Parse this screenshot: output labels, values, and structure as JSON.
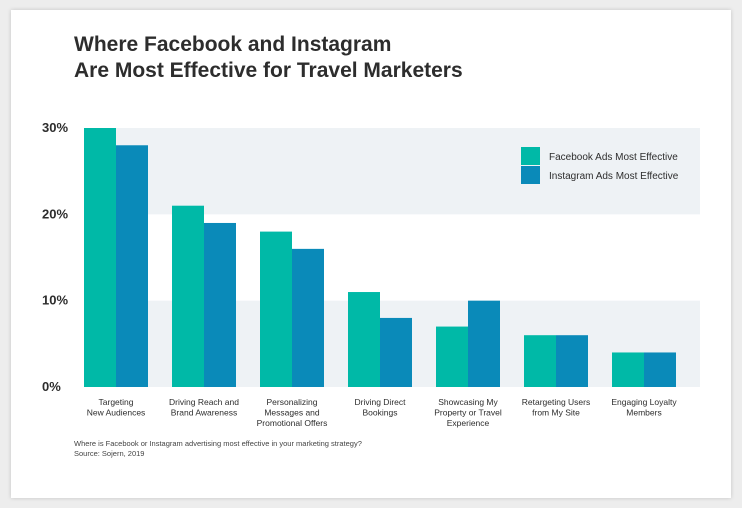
{
  "chart_data": {
    "type": "bar",
    "title": [
      "Where Facebook and Instagram",
      "Are Most Effective for Travel Marketers"
    ],
    "categories": [
      [
        "Targeting",
        "New Audiences"
      ],
      [
        "Driving Reach and",
        "Brand Awareness"
      ],
      [
        "Personalizing",
        "Messages and",
        "Promotional Offers"
      ],
      [
        "Driving Direct",
        "Bookings"
      ],
      [
        "Showcasing My",
        "Property or Travel",
        "Experience"
      ],
      [
        "Retargeting Users",
        "from My Site"
      ],
      [
        "Engaging Loyalty",
        "Members"
      ]
    ],
    "series": [
      {
        "name": "Facebook Ads Most Effective",
        "values": [
          30,
          21,
          18,
          11,
          7,
          6,
          4
        ],
        "color": "#00b9a7"
      },
      {
        "name": "Instagram Ads Most Effective",
        "values": [
          28,
          19,
          16,
          8,
          10,
          6,
          4
        ],
        "color": "#0a8ab9"
      }
    ],
    "yticks": [
      "30%",
      "20%",
      "10%",
      "0%"
    ],
    "ytick_values": [
      30,
      20,
      10,
      0
    ],
    "ylim": [
      0,
      30
    ],
    "legend_position": "top-right",
    "grid_band_color": "#eef2f5"
  },
  "footnote": {
    "question": "Where is Facebook or Instagram advertising most effective in your marketing strategy?",
    "source": "Source: Sojern, 2019"
  }
}
